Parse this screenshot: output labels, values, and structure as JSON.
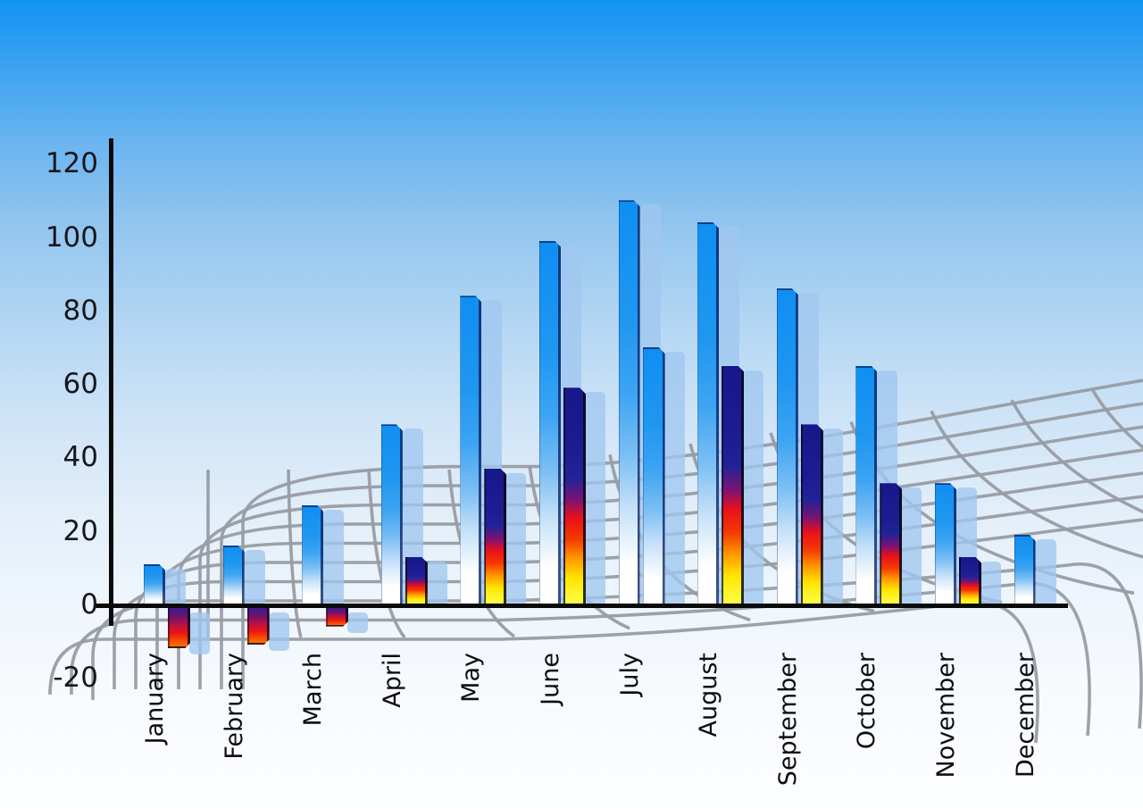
{
  "chart_data": {
    "type": "bar",
    "title": "",
    "subtitle": "",
    "categories": [
      "January",
      "February",
      "March",
      "April",
      "May",
      "June",
      "July",
      "August",
      "September",
      "October",
      "November",
      "December"
    ],
    "series": [
      {
        "name": "series-1-blue-gradient",
        "values": [
          11,
          16,
          27,
          49,
          84,
          99,
          110,
          104,
          86,
          65,
          33,
          19
        ]
      },
      {
        "name": "series-2-spectrum-gradient",
        "values": [
          -11,
          -10,
          -5,
          13,
          37,
          59,
          70,
          65,
          49,
          33,
          13,
          null
        ],
        "bar_styles": [
          "multi",
          "multi",
          "multi",
          "multi",
          "multi",
          "multi",
          "blue",
          "multi",
          "multi",
          "multi",
          "multi",
          null
        ]
      }
    ],
    "y_axis": {
      "min": -20,
      "max": 120,
      "tick_step": 20,
      "tick_labels": [
        "120",
        "100",
        "80",
        "60",
        "40",
        "20",
        "0",
        "-20"
      ],
      "tick_values": [
        120,
        100,
        80,
        60,
        40,
        20,
        0,
        -20
      ]
    },
    "x_axis": {
      "label_rotation_deg": -90
    },
    "legend_position": "none",
    "grid": "decorative curved gray perspective mesh, lower half of image",
    "background": "blue sky gradient fading to white at bottom"
  },
  "colors": {
    "sky_top": "#1193f2",
    "sky_bottom": "#fdfeff",
    "bar_blue_top": "#0f8ef2",
    "bar_blue_bottom": "#ffffff",
    "bar_spectrum": [
      "#17178c",
      "#e8101c",
      "#ff9900",
      "#fcff4d"
    ],
    "bar_shadow": "rgba(160,198,240,0.78)",
    "grid_line": "#989ca3",
    "axis_line": "#0a0a0a",
    "label_text": "#17171d"
  }
}
